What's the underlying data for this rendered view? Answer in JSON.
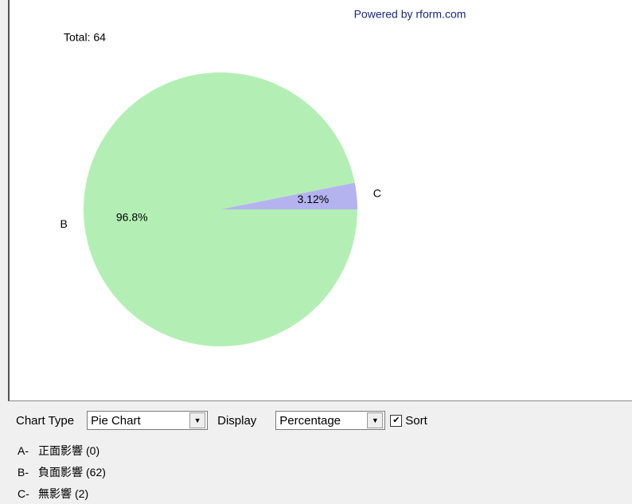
{
  "chart_data": {
    "type": "pie",
    "title": "Total: 64",
    "credit": "Powered by rform.com",
    "categories": [
      "B",
      "C"
    ],
    "values": [
      96.8,
      3.12
    ],
    "value_labels": [
      "96.8%",
      "3.12%"
    ],
    "colors": [
      "#b3efb5",
      "#b5b3ef"
    ]
  },
  "controls": {
    "chart_type_label": "Chart Type",
    "chart_type_value": "Pie Chart",
    "display_label": "Display",
    "display_value": "Percentage",
    "sort_label": "Sort",
    "sort_checked": true
  },
  "legend_items": [
    {
      "letter": "A-",
      "name": "正面影響",
      "count": "(0)"
    },
    {
      "letter": "B-",
      "name": "負面影響",
      "count": "(62)"
    },
    {
      "letter": "C-",
      "name": "無影響",
      "count": "(2)"
    }
  ]
}
